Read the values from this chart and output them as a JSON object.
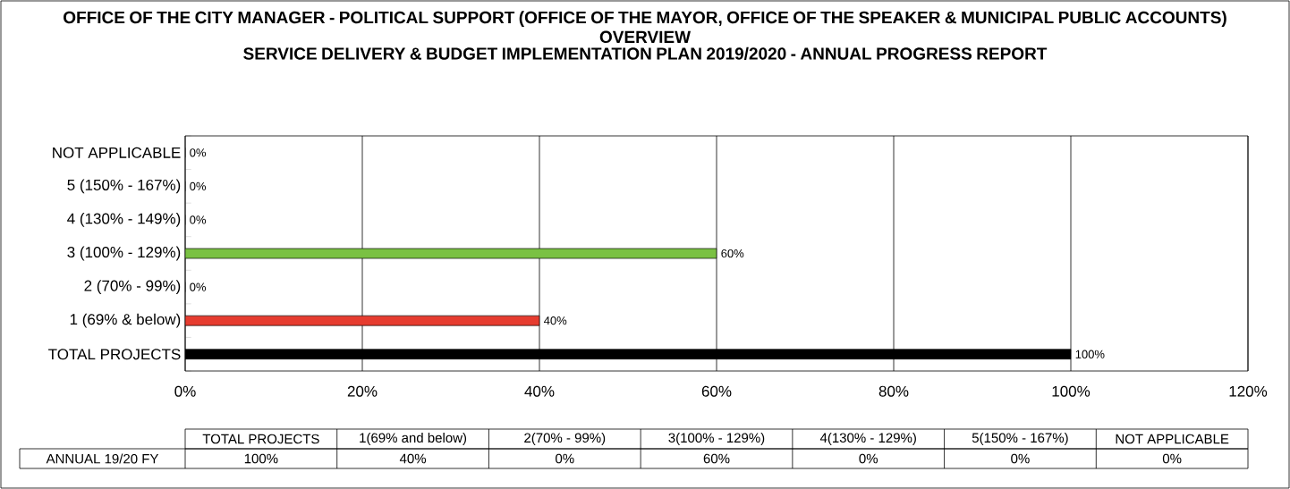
{
  "chart_data": {
    "type": "bar",
    "orientation": "horizontal",
    "title": "OFFICE OF THE CITY MANAGER - POLITICAL SUPPORT (OFFICE OF THE MAYOR, OFFICE OF THE SPEAKER & MUNICIPAL PUBLIC ACCOUNTS) OVERVIEW",
    "subtitle": "SERVICE DELIVERY & BUDGET IMPLEMENTATION PLAN 2019/2020 - ANNUAL PROGRESS REPORT",
    "categories": [
      "NOT APPLICABLE",
      "5 (150% - 167%)",
      "4 (130% - 149%)",
      "3 (100% - 129%)",
      "2 (70% - 99%)",
      "1 (69% & below)",
      "TOTAL PROJECTS"
    ],
    "values": [
      0,
      0,
      0,
      60,
      0,
      40,
      100
    ],
    "colors": [
      "#7ac143",
      "#7ac143",
      "#7ac143",
      "#7ac143",
      "#e63c2f",
      "#e63c2f",
      "#000000"
    ],
    "value_labels": [
      "0%",
      "0%",
      "0%",
      "60%",
      "0%",
      "40%",
      "100%"
    ],
    "xlim": [
      0,
      120
    ],
    "xticks": [
      {
        "value": 0,
        "label": "0%"
      },
      {
        "value": 20,
        "label": "20%"
      },
      {
        "value": 40,
        "label": "40%"
      },
      {
        "value": 60,
        "label": "60%"
      },
      {
        "value": 80,
        "label": "80%"
      },
      {
        "value": 100,
        "label": "100%"
      },
      {
        "value": 120,
        "label": "120%"
      }
    ],
    "grid": "x",
    "annotations": [
      "TOTAL PROJECTS",
      "1(69% and below)",
      "2(70% - 99%)",
      "3(100% - 129%)",
      "4(130% - 129%)",
      "5(150% - 167%)",
      "NOT APPLICABLE",
      "ANNUAL 19/20 FY",
      "100%",
      "40%",
      "0%",
      "60%",
      "0%",
      "0%",
      "0%"
    ]
  }
}
